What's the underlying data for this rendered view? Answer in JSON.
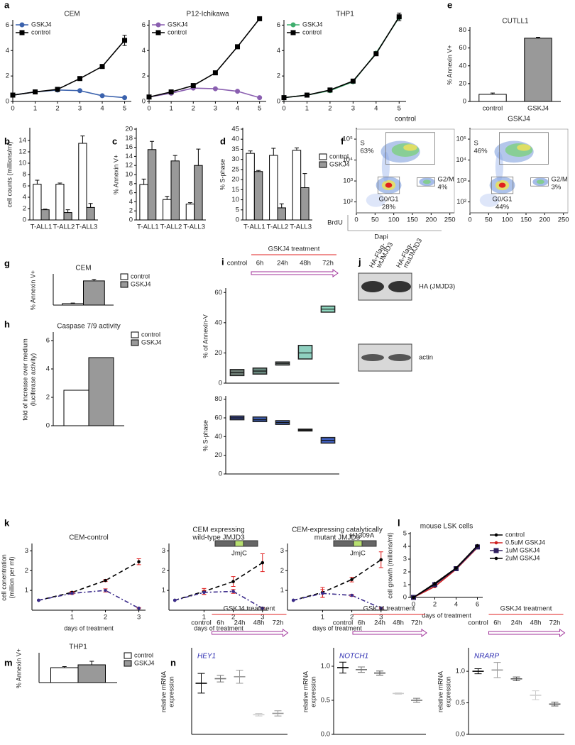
{
  "chart_data": [
    {
      "panel": "a",
      "type": "line",
      "title": "CEM",
      "x": [
        0,
        1,
        2,
        3,
        4,
        5
      ],
      "xlim": [
        0,
        5.3
      ],
      "xticks": [
        0,
        1,
        2,
        3,
        4,
        5
      ],
      "ylim": [
        0,
        6.3
      ],
      "yticks": [
        0,
        2,
        4,
        6
      ],
      "legend": "upper left",
      "series": [
        {
          "name": "GSKJ4",
          "color": "#3b62ad",
          "marker": "circle",
          "values": [
            0.5,
            0.75,
            0.9,
            0.85,
            0.45,
            0.3
          ]
        },
        {
          "name": "control",
          "color": "#000000",
          "marker": "square",
          "values": [
            0.5,
            0.75,
            0.95,
            1.8,
            2.75,
            4.8
          ],
          "errors": [
            null,
            null,
            null,
            0.05,
            0.08,
            0.4
          ]
        }
      ]
    },
    {
      "type": "line",
      "title": "P12-Ichikawa",
      "x": [
        0,
        1,
        2,
        3,
        4,
        5
      ],
      "xlim": [
        0,
        5.3
      ],
      "xticks": [
        0,
        1,
        2,
        3,
        4,
        5
      ],
      "ylim": [
        0,
        6.3
      ],
      "yticks": [
        0,
        2,
        4,
        6
      ],
      "legend": "upper left",
      "series": [
        {
          "name": "GSKJ4",
          "color": "#8a5fb0",
          "marker": "circle",
          "values": [
            0.35,
            0.65,
            1.05,
            1.0,
            0.8,
            0.3
          ]
        },
        {
          "name": "control",
          "color": "#000000",
          "marker": "square",
          "values": [
            0.35,
            0.75,
            1.25,
            2.25,
            4.3,
            6.5
          ]
        }
      ]
    },
    {
      "type": "line",
      "title": "THP1",
      "x": [
        0,
        1,
        2,
        3,
        4,
        5
      ],
      "xlim": [
        0,
        5.3
      ],
      "xticks": [
        0,
        1,
        2,
        3,
        4,
        5
      ],
      "ylim": [
        0,
        6.3
      ],
      "yticks": [
        0,
        2,
        4,
        6
      ],
      "legend": "upper left",
      "series": [
        {
          "name": "GSKJ4",
          "color": "#3fae6e",
          "marker": "circle",
          "values": [
            0.3,
            0.5,
            0.85,
            1.55,
            3.8,
            6.6
          ]
        },
        {
          "name": "control",
          "color": "#000000",
          "marker": "square",
          "values": [
            0.3,
            0.5,
            0.9,
            1.6,
            3.75,
            6.65
          ],
          "errors": [
            null,
            null,
            null,
            null,
            0.1,
            0.3
          ]
        }
      ]
    },
    {
      "panel": "e",
      "type": "bar",
      "title": "CUTLL1",
      "ylabel": "% Annexin V+",
      "categories": [
        "control",
        "GSKJ4"
      ],
      "values": [
        8,
        71
      ],
      "errors": [
        1.5,
        1
      ],
      "colors": [
        "#ffffff",
        "#999999"
      ],
      "ylim": [
        0,
        82
      ],
      "yticks": [
        0,
        20,
        40,
        60,
        80
      ]
    },
    {
      "panel": "b",
      "type": "bar",
      "ylabel": "cell counts (millions/ml)",
      "categories": [
        "T-ALL1",
        "T-ALL2",
        "T-ALL3"
      ],
      "ylim": [
        0,
        16
      ],
      "yticks": [
        0,
        2,
        4,
        6,
        8,
        10,
        12,
        14
      ],
      "series": [
        {
          "color": "#ffffff",
          "values": [
            6.3,
            6.3,
            13.5
          ],
          "errors": [
            0.7,
            0.2,
            1.3
          ]
        },
        {
          "color": "#999999",
          "values": [
            1.8,
            1.3,
            2.2
          ],
          "errors": [
            0.1,
            0.5,
            0.7
          ]
        }
      ]
    },
    {
      "panel": "c",
      "type": "bar",
      "ylabel": "% Annexin V+",
      "categories": [
        "T-ALL1",
        "T-ALL2",
        "T-ALL3"
      ],
      "ylim": [
        0,
        20
      ],
      "yticks": [
        0,
        2,
        4,
        6,
        8,
        10,
        12,
        14,
        16,
        18,
        20
      ],
      "series": [
        {
          "color": "#ffffff",
          "values": [
            7.8,
            4.5,
            3.5
          ],
          "errors": [
            1.2,
            0.7,
            0.3
          ]
        },
        {
          "color": "#999999",
          "values": [
            15.5,
            13,
            12
          ],
          "errors": [
            1.8,
            1.2,
            3.6
          ]
        }
      ]
    },
    {
      "panel": "d",
      "type": "bar",
      "ylabel": "% S-phase",
      "categories": [
        "T-ALL1",
        "T-ALL2",
        "T-ALL3"
      ],
      "ylim": [
        0,
        45
      ],
      "yticks": [
        0,
        5,
        10,
        15,
        20,
        25,
        30,
        35,
        40,
        45
      ],
      "legend": "center right",
      "series": [
        {
          "name": "control",
          "color": "#ffffff",
          "values": [
            33,
            32,
            34.5
          ],
          "errors": [
            1.2,
            3.5,
            1.2
          ]
        },
        {
          "name": "GSKJ4",
          "color": "#999999",
          "values": [
            24,
            6,
            16
          ],
          "errors": [
            0.5,
            2,
            7
          ]
        }
      ]
    },
    {
      "panel": "f",
      "type": "flow",
      "title": "control",
      "xlabel": "Dapi",
      "ylabel": "BrdU",
      "xlim": [
        0,
        262
      ],
      "xticks": [
        0,
        50,
        100,
        150,
        200,
        250
      ],
      "ylog": true,
      "ylim": [
        30,
        300000
      ],
      "yticks": [
        {
          "value": 100,
          "label": "10²"
        },
        {
          "value": 1000,
          "label": "10³"
        },
        {
          "value": 10000,
          "label": "10⁴"
        },
        {
          "value": 100000,
          "label": "10⁵"
        }
      ],
      "gates": [
        {
          "name": "S",
          "percent": "63%"
        },
        {
          "name": "G0/G1",
          "percent": "28%"
        },
        {
          "name": "G2/M",
          "percent": "4%"
        }
      ]
    },
    {
      "type": "flow",
      "title": "GSKJ4",
      "xlim": [
        0,
        262
      ],
      "xticks": [
        0,
        50,
        100,
        150,
        200,
        250
      ],
      "ylog": true,
      "ylim": [
        30,
        300000
      ],
      "yticks": [
        {
          "value": 100,
          "label": "10²"
        },
        {
          "value": 1000,
          "label": "10³"
        },
        {
          "value": 10000,
          "label": "10⁴"
        },
        {
          "value": 100000,
          "label": "10⁵"
        }
      ],
      "gates": [
        {
          "name": "S",
          "percent": "46%"
        },
        {
          "name": "G0/G1",
          "percent": "44%"
        },
        {
          "name": "G2/M",
          "percent": "3%"
        }
      ]
    },
    {
      "panel": "g",
      "type": "bar",
      "title": "CEM",
      "ylabel": "% Annexin V+",
      "categories": [
        null
      ],
      "ylim": [
        0,
        80
      ],
      "legend": "right",
      "series": [
        {
          "name": "control",
          "color": "#ffffff",
          "values": [
            4
          ],
          "errors": [
            1.5
          ]
        },
        {
          "name": "GSKJ4",
          "color": "#999999",
          "values": [
            65
          ],
          "errors": [
            4
          ]
        }
      ]
    },
    {
      "panel": "h",
      "type": "bar",
      "title": "Caspase 7/9 activity",
      "ylabel": [
        "fold of increase over medium",
        "(luciferase activity)"
      ],
      "categories": [
        null
      ],
      "ylim": [
        0,
        6.5
      ],
      "yticks": [
        0,
        2,
        4,
        6
      ],
      "legend": "right",
      "series": [
        {
          "name": "control",
          "color": "#ffffff",
          "values": [
            2.5
          ]
        },
        {
          "name": "GSKJ4",
          "color": "#999999",
          "values": [
            4.8
          ]
        }
      ]
    },
    {
      "panel": "i",
      "type": "box",
      "header": "GSKJ4 treatment",
      "categories": [
        "control",
        "6h",
        "24h",
        "48h",
        "72h"
      ],
      "ylabel": "% of Annexin-V",
      "ylim": [
        0,
        62
      ],
      "yticks": [
        0,
        20,
        40,
        60
      ],
      "low": [
        5,
        6,
        12,
        16,
        47
      ],
      "values": [
        7,
        8,
        13,
        20,
        49
      ],
      "high": [
        9,
        10,
        14,
        25,
        51
      ],
      "colors": [
        "#6e7e76",
        "#6a8a80",
        "#7e8a86",
        "#8fd0c0",
        "#8fd8c0"
      ]
    },
    {
      "type": "box",
      "ylabel": "% S-phase",
      "ylim": [
        0,
        82
      ],
      "yticks": [
        0,
        20,
        40,
        60,
        80
      ],
      "low": [
        58,
        56,
        53,
        46,
        33
      ],
      "values": [
        60,
        58,
        55,
        47,
        36
      ],
      "high": [
        62,
        61,
        57,
        48,
        39
      ],
      "colors": [
        "#3a4a9a",
        "#3a5aaa",
        "#4060b0",
        "#333333",
        "#4060c0"
      ]
    },
    {
      "panel": "j",
      "type": "blot",
      "lanes": [
        [
          "HA-Flag-",
          "wtJMJD3"
        ],
        [
          "HA-Flag-",
          "mutJMJD3"
        ]
      ],
      "bands": [
        "HA (JMJD3)",
        "actin"
      ]
    },
    {
      "panel": "k",
      "type": "line",
      "title": "CEM-control",
      "ylabel": [
        "cell conentration",
        "(million per ml)"
      ],
      "xlabel": "days of treatment",
      "x": [
        0,
        1,
        2,
        3
      ],
      "xlim": [
        -0.2,
        3.2
      ],
      "xticks": [
        1,
        2,
        3
      ],
      "ylim": [
        0,
        3.3
      ],
      "yticks": [
        1,
        2,
        3
      ],
      "error_color": "#e02020",
      "series": [
        {
          "color": "#000000",
          "dash": "6,4",
          "marker": "dot",
          "values": [
            0.5,
            0.9,
            1.5,
            2.45
          ],
          "errors": [
            null,
            0.05,
            0.05,
            0.15
          ]
        },
        {
          "color": "#3a2a8a",
          "dash": "6,3,2,3",
          "marker": "dot",
          "values": [
            0.5,
            0.85,
            1.0,
            0.1
          ],
          "errors": [
            null,
            0.05,
            0.08,
            0.03
          ]
        }
      ]
    },
    {
      "type": "line",
      "title": [
        "CEM expressing",
        "wild-type JMJD3"
      ],
      "domain": "JmjC",
      "xlabel": "days of treatment",
      "x": [
        0,
        1,
        2,
        3
      ],
      "xlim": [
        -0.2,
        3.2
      ],
      "xticks": [
        1,
        2,
        3
      ],
      "ylim": [
        0,
        3.3
      ],
      "yticks": [
        1,
        2,
        3
      ],
      "error_color": "#e02020",
      "series": [
        {
          "color": "#000000",
          "dash": "6,4",
          "marker": "dot",
          "values": [
            0.5,
            0.95,
            1.45,
            2.4
          ],
          "errors": [
            null,
            0.15,
            0.25,
            0.45
          ]
        },
        {
          "color": "#3a2a8a",
          "dash": "6,3,2,3",
          "marker": "dot",
          "values": [
            0.5,
            0.9,
            0.95,
            0.1
          ],
          "errors": [
            null,
            0.1,
            0.1,
            0.03
          ]
        }
      ]
    },
    {
      "type": "line",
      "title": [
        "CEM-expressing catalytically",
        "mutant JMJD3"
      ],
      "domain": "JmjC",
      "mutation": "H1309A",
      "xlabel": "days of treatment",
      "x": [
        0,
        1,
        2,
        3
      ],
      "xlim": [
        -0.2,
        3.2
      ],
      "xticks": [
        1,
        2,
        3
      ],
      "ylim": [
        0,
        3.3
      ],
      "yticks": [
        1,
        2,
        3
      ],
      "error_color": "#e02020",
      "series": [
        {
          "color": "#000000",
          "dash": "6,4",
          "marker": "dot",
          "values": [
            0.5,
            0.9,
            1.55,
            2.55
          ],
          "errors": [
            null,
            0.25,
            0.12,
            0.4
          ]
        },
        {
          "color": "#3a2a8a",
          "dash": "6,3,2,3",
          "marker": "dot",
          "values": [
            0.5,
            0.85,
            0.75,
            0.1
          ],
          "errors": [
            null,
            0.2,
            0.05,
            0.03
          ]
        }
      ]
    },
    {
      "panel": "l",
      "type": "line",
      "title": "mouse LSK cells",
      "ylabel": "cell growth (millions/ml)",
      "xlabel": "days of treatment",
      "x": [
        0,
        2,
        4,
        6
      ],
      "xlim": [
        -0.3,
        6.5
      ],
      "xticks": [
        0,
        2,
        4,
        6
      ],
      "ylim": [
        0,
        5
      ],
      "yticks": [
        0,
        1,
        2,
        3,
        4,
        5
      ],
      "legend": "right",
      "series": [
        {
          "name": "control",
          "color": "#000000",
          "marker": "dot",
          "values": [
            0,
            1.1,
            2.3,
            4.0
          ]
        },
        {
          "name": "0.5uM GSKJ4",
          "color": "#d02020",
          "marker": "dot",
          "values": [
            0,
            0.85,
            2.2,
            3.9
          ]
        },
        {
          "name": "1uM GSKJ4",
          "color": "#302060",
          "marker": "square",
          "values": [
            0,
            1.0,
            2.25,
            3.95
          ]
        },
        {
          "name": "2uM GSKJ4",
          "color": "#000000",
          "marker": "dot",
          "values": [
            0,
            1.05,
            2.3,
            4.05
          ]
        }
      ]
    },
    {
      "panel": "m",
      "type": "bar",
      "title": "THP1",
      "ylabel": "% Annexin V+",
      "categories": [
        null
      ],
      "ylim": [
        0,
        8
      ],
      "legend": "right",
      "series": [
        {
          "name": "control",
          "color": "#ffffff",
          "values": [
            4.2
          ],
          "errors": [
            0.3
          ]
        },
        {
          "name": "GSKJ4",
          "color": "#999999",
          "values": [
            5
          ],
          "errors": [
            1.0
          ]
        }
      ]
    },
    {
      "panel": "n",
      "type": "errorbar",
      "header": "GSKJ4 treatment",
      "categories": [
        "control",
        "6h",
        "24h",
        "48h",
        "72h"
      ],
      "label": "HEY1",
      "ylabel": [
        "relative mRNA",
        "expression"
      ],
      "ylim": [
        0,
        1.3
      ],
      "values": [
        0.78,
        0.85,
        0.88,
        0.3,
        0.32
      ],
      "errors": [
        0.15,
        0.05,
        0.1,
        0.02,
        0.04
      ],
      "colors": [
        "#000000",
        "#777777",
        "#999999",
        "#cccccc",
        "#999999"
      ]
    },
    {
      "type": "errorbar",
      "header": "GSKJ4 treatment",
      "categories": [
        "control",
        "6h",
        "24h",
        "48h",
        "72h"
      ],
      "label": "NOTCH1",
      "ylabel": [
        "relative mRNA",
        "expression"
      ],
      "ylim": [
        0,
        1.25
      ],
      "yticks": [
        {
          "value": 0,
          "label": "0.0"
        },
        {
          "value": 0.5,
          "label": "0.5"
        },
        {
          "value": 1,
          "label": "1.0"
        }
      ],
      "values": [
        0.98,
        0.95,
        0.9,
        0.6,
        0.5
      ],
      "errors": [
        0.08,
        0.04,
        0.03,
        0.01,
        0.03
      ],
      "colors": [
        "#000000",
        "#777777",
        "#555555",
        "#cccccc",
        "#777777"
      ]
    },
    {
      "type": "errorbar",
      "header": "GSKJ4 treatment",
      "categories": [
        "control",
        "6h",
        "24h",
        "48h",
        "72h"
      ],
      "label": "NRARP",
      "ylabel": [
        "relative mRNA",
        "expression"
      ],
      "ylim": [
        0,
        1.35
      ],
      "yticks": [
        {
          "value": 0,
          "label": "0.0"
        },
        {
          "value": 0.5,
          "label": "0.5"
        },
        {
          "value": 1,
          "label": "1.0"
        }
      ],
      "values": [
        1.0,
        1.02,
        0.88,
        0.62,
        0.48
      ],
      "errors": [
        0.04,
        0.12,
        0.03,
        0.07,
        0.03
      ],
      "colors": [
        "#000000",
        "#999999",
        "#555555",
        "#cccccc",
        "#555555"
      ]
    }
  ]
}
